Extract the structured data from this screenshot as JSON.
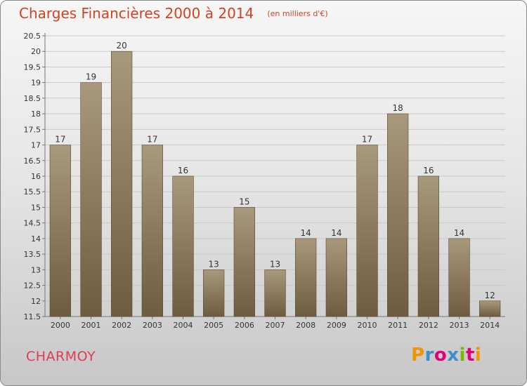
{
  "header": {
    "title": "Charges Financières 2000 à 2014",
    "subtitle": "(en milliers d'€)"
  },
  "footer": {
    "commune": "CHARMOY",
    "logo_text": "Proxiti"
  },
  "colors": {
    "title": "#cc4422",
    "commune": "#e03a55",
    "bar_top": "#a8987c",
    "bar_bottom": "#6e5c40",
    "logo": [
      "#f29400",
      "#3a8fd1",
      "#e2007a",
      "#3a8fd1",
      "#7ab800",
      "#e2007a",
      "#f29400"
    ]
  },
  "chart_data": {
    "type": "bar",
    "title": "Charges Financières 2000 à 2014",
    "subtitle": "(en milliers d'€)",
    "xlabel": "",
    "ylabel": "",
    "categories": [
      "2000",
      "2001",
      "2002",
      "2003",
      "2004",
      "2005",
      "2006",
      "2007",
      "2008",
      "2009",
      "2010",
      "2011",
      "2012",
      "2013",
      "2014"
    ],
    "values": [
      17,
      19,
      20,
      17,
      16,
      13,
      15,
      13,
      14,
      14,
      17,
      18,
      16,
      14,
      12
    ],
    "ylim": [
      11.5,
      20.5
    ],
    "yticks": [
      "11.5",
      "12",
      "12.5",
      "13",
      "13.5",
      "14",
      "14.5",
      "15",
      "15.5",
      "16",
      "16.5",
      "17",
      "17.5",
      "18",
      "18.5",
      "19",
      "19.5",
      "20",
      "20.5"
    ],
    "grid": true
  }
}
